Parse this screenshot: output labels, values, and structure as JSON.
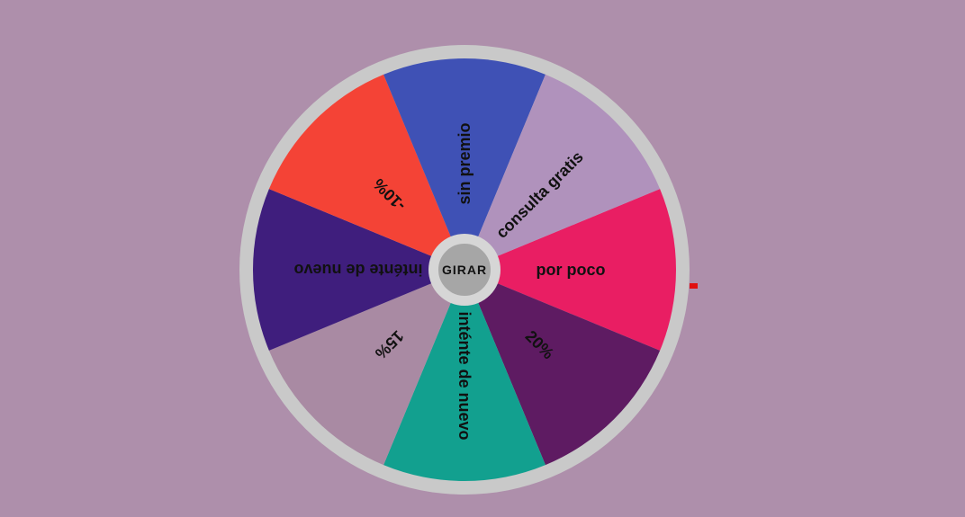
{
  "wheel": {
    "spin_label": "GIRAR",
    "rim_color": "#c9c9c9",
    "hub_color": "#a6a6a6",
    "pointer_color": "#e01010",
    "segments": [
      {
        "label": "por poco",
        "color": "#e91e63"
      },
      {
        "label": "20%",
        "color": "#5e1b62"
      },
      {
        "label": "inténte de nuevo",
        "color": "#12a08f"
      },
      {
        "label": "15%",
        "color": "#a98aa3"
      },
      {
        "label": "inténte de nuevo",
        "color": "#3f1e7d"
      },
      {
        "label": "-10%",
        "color": "#f44336"
      },
      {
        "label": "sin premio",
        "color": "#3f51b5"
      },
      {
        "label": "consulta gratis",
        "color": "#b092bc"
      }
    ]
  }
}
